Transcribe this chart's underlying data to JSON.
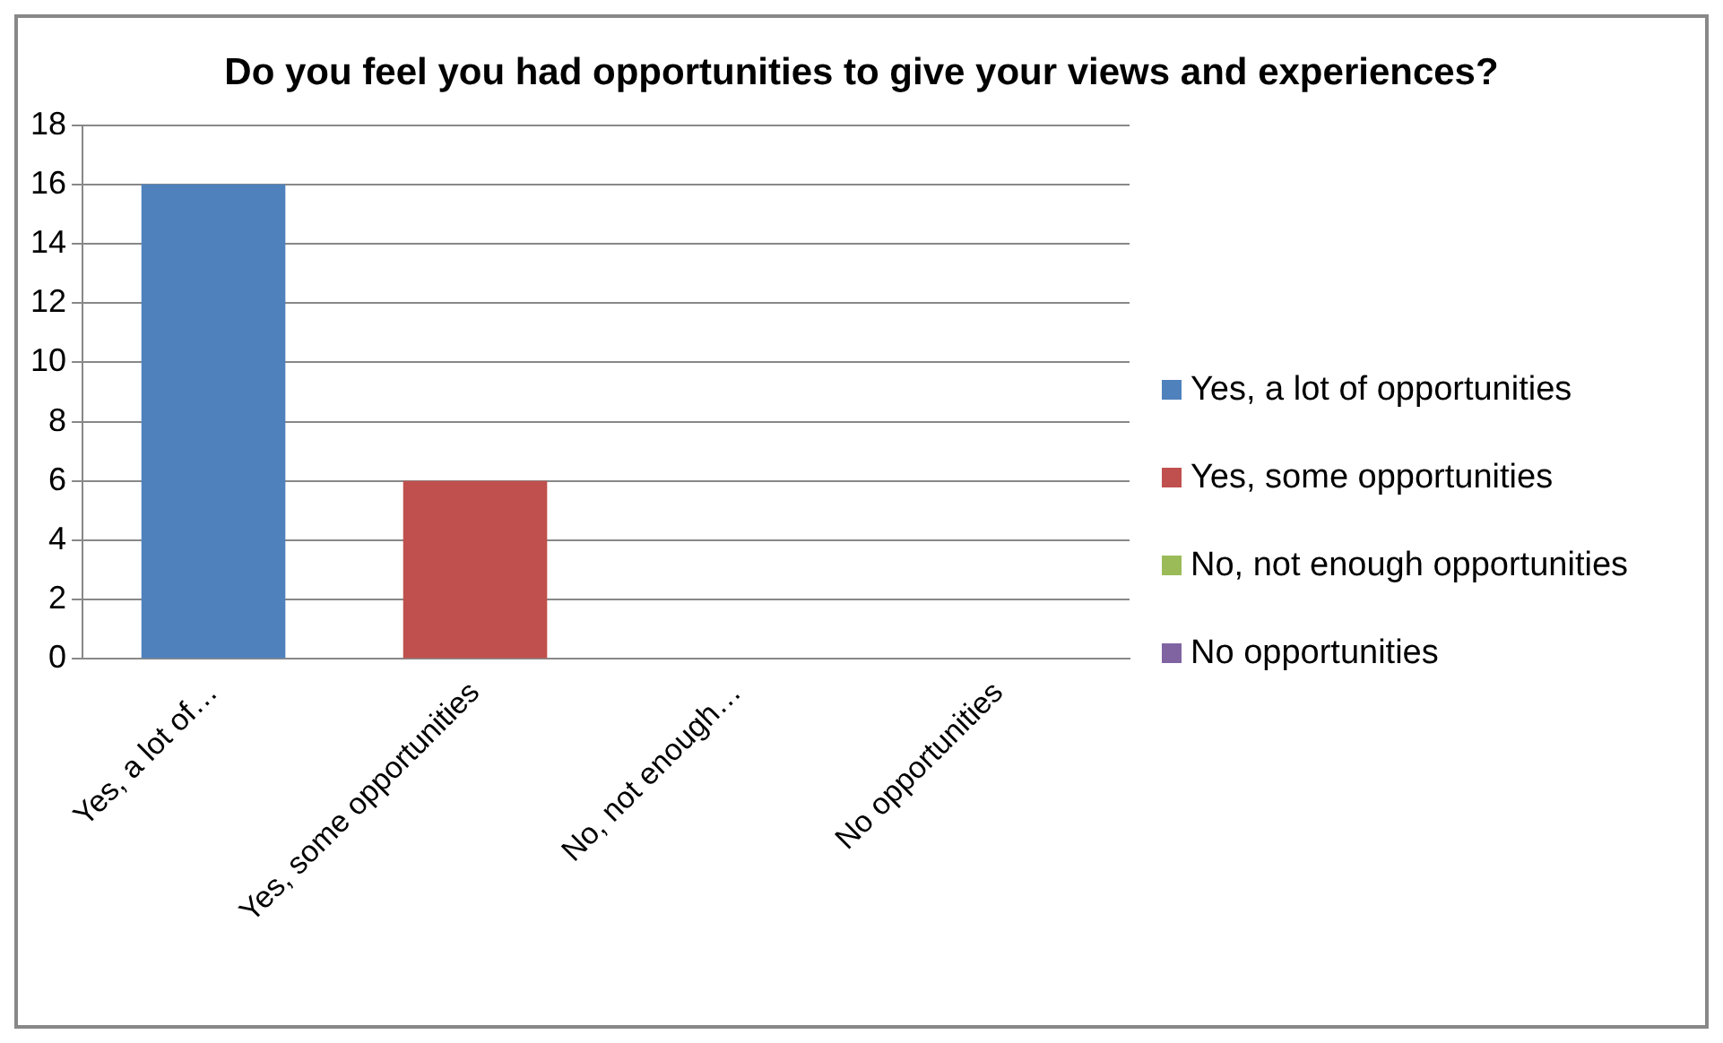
{
  "chart_data": {
    "type": "bar",
    "title": "Do you feel you had opportunities to give your views and experiences?",
    "categories": [
      "Yes, a lot of…",
      "Yes, some opportunities",
      "No, not enough…",
      "No opportunities"
    ],
    "series": [
      {
        "name": "Yes, a lot of opportunities",
        "color": "#4f81bd",
        "values": [
          16,
          null,
          null,
          null
        ]
      },
      {
        "name": "Yes, some opportunities",
        "color": "#c0504d",
        "values": [
          null,
          6,
          null,
          null
        ]
      },
      {
        "name": "No, not enough opportunities",
        "color": "#9bbb59",
        "values": [
          null,
          null,
          0,
          null
        ]
      },
      {
        "name": "No opportunities",
        "color": "#8064a2",
        "values": [
          null,
          null,
          null,
          0
        ]
      }
    ],
    "ylim": [
      0,
      18
    ],
    "yticks": [
      0,
      2,
      4,
      6,
      8,
      10,
      12,
      14,
      16,
      18
    ],
    "grid": "y",
    "legend": "right"
  }
}
